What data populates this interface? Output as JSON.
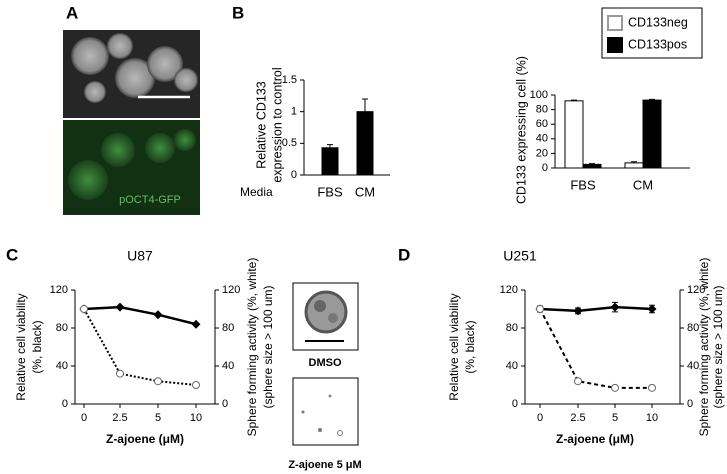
{
  "panel_labels": [
    "A",
    "B",
    "C",
    "D"
  ],
  "image_labels": [
    "pOCT4-GFP",
    "DMSO",
    "Z-ajoene 5 μM"
  ],
  "chart_data": [
    {
      "type": "bar",
      "ylabel": [
        "Relative CD133",
        "expression to control"
      ],
      "xlabel": "Media",
      "categories": [
        "FBS",
        "CM"
      ],
      "values": [
        0.43,
        1.0
      ],
      "errors": [
        0.05,
        0.2
      ],
      "color": "#000000",
      "ylim": [
        0,
        1.5
      ],
      "yticks": [
        0,
        0.5,
        1,
        1.5
      ]
    },
    {
      "type": "grouped_bar",
      "ylabel": [
        "CD133 expressing cell (%)"
      ],
      "categories": [
        "FBS",
        "CM"
      ],
      "legend": "top",
      "series": [
        {
          "name": "CD133neg",
          "color": "#ffffff",
          "values": [
            92,
            7
          ],
          "errors": [
            1,
            1.5
          ]
        },
        {
          "name": "CD133pos",
          "color": "#000000",
          "values": [
            5,
            93
          ],
          "errors": [
            1,
            1
          ]
        }
      ],
      "ylim": [
        0,
        100
      ],
      "yticks": [
        0,
        20,
        40,
        60,
        80,
        100
      ]
    },
    {
      "type": "line",
      "title": "U87",
      "xlabel": "Z-ajoene  (μM)",
      "ylabel": [
        "Relative cell viability",
        "(%, black)"
      ],
      "y2label": [
        "Sphere forming activity (%, white)",
        "(sphere size > 100 um)"
      ],
      "categories": [
        "0",
        "2.5",
        "5",
        "10"
      ],
      "series": [
        {
          "color": "#000000",
          "marker": "diamond",
          "dash": "solid",
          "values": [
            100,
            102,
            94,
            84
          ]
        },
        {
          "color": "#000000",
          "marker": "circle",
          "dash": "dotted",
          "axis": "y2",
          "values": [
            100,
            32,
            24,
            20
          ]
        }
      ],
      "ylim": [
        0,
        120
      ],
      "yticks": [
        0,
        40,
        80,
        120
      ],
      "y2lim": [
        0,
        120
      ],
      "y2ticks": [
        0,
        40,
        80,
        120
      ]
    },
    {
      "type": "line",
      "title": "U251",
      "xlabel": "Z-ajoene (μM)",
      "ylabel": [
        "Relative cell viability",
        "(%, black)"
      ],
      "y2label": [
        "Sphere forming activity (%, white)",
        "(sphere size > 100 um)"
      ],
      "categories": [
        "0",
        "2.5",
        "5",
        "10"
      ],
      "series": [
        {
          "color": "#000000",
          "marker": "diamond",
          "dash": "solid",
          "values": [
            100,
            98,
            102,
            100
          ],
          "errors": [
            3,
            3,
            5,
            4
          ]
        },
        {
          "color": "#000000",
          "marker": "circle",
          "dash": "dashed",
          "axis": "y2",
          "values": [
            100,
            24,
            17,
            17
          ],
          "errors": [
            3,
            1,
            1,
            1
          ]
        }
      ],
      "ylim": [
        0,
        120
      ],
      "yticks": [
        0,
        40,
        80,
        120
      ],
      "y2lim": [
        0,
        120
      ],
      "y2ticks": [
        0,
        40,
        80,
        120
      ]
    }
  ]
}
